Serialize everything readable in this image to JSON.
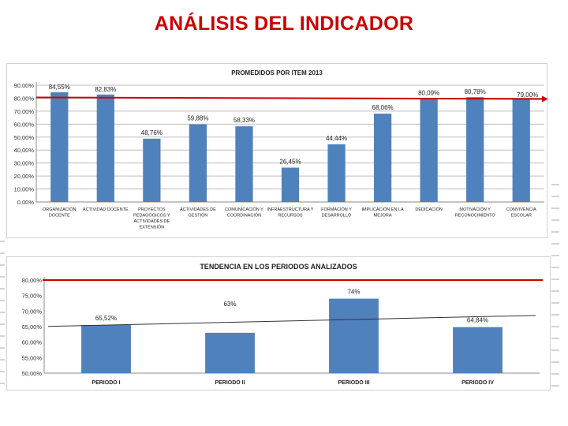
{
  "page": {
    "title": "ANÁLISIS DEL INDICADOR"
  },
  "colors": {
    "bar": "#4f81bd",
    "target_line": "#cc0000",
    "trend_line": "#333333",
    "grid": "#bdbdbd"
  },
  "chart_data": [
    {
      "type": "bar",
      "title": "PROMEDIDOS POR ITEM 2013",
      "categories": [
        [
          "ORGANIZACIÓN",
          "DOCENTE"
        ],
        [
          "ACTIVIDAD DOCENTE"
        ],
        [
          "PROYECTOS",
          "PEDAGÓGICOS Y",
          "ACTIVIDADES DE",
          "EXTENSIÓN"
        ],
        [
          "ACTIVIDADES DE",
          "GESTIÓN"
        ],
        [
          "COMUNICACIÓN Y",
          "COORDINACIÓN"
        ],
        [
          "INFRAESTRUCTURA Y",
          "RECURSOS"
        ],
        [
          "FORMACIÓN Y",
          "DESARROLLO"
        ],
        [
          "IMPLICACIÓN EN LA",
          "MEJORA"
        ],
        [
          "DEDICACIÓN"
        ],
        [
          "MOTIVACIÓN Y",
          "RECONOCIMIENTO"
        ],
        [
          "CONVIVENCIA",
          "ESCOLAR"
        ]
      ],
      "values": [
        84.55,
        82.83,
        48.76,
        59.88,
        58.33,
        26.45,
        44.44,
        68.06,
        80.09,
        80.78,
        79.0
      ],
      "data_labels": [
        "84,55%",
        "82,83%",
        "48,76%",
        "59,88%",
        "58,33%",
        "26,45%",
        "44,44%",
        "68,06%",
        "80,09%",
        "80,78%",
        "79,00%"
      ],
      "ylim": [
        0,
        90
      ],
      "yticks": [
        "0,00%",
        "10,00%",
        "20,00%",
        "30,00%",
        "40,00%",
        "50,00%",
        "60,00%",
        "70,00%",
        "80,00%",
        "90,00%"
      ],
      "reference_line": 80,
      "grid": true
    },
    {
      "type": "bar",
      "title": "TENDENCIA EN LOS PERIODOS ANALIZADOS",
      "categories": [
        "PERIODO I",
        "PERIODO II",
        "PERIODO III",
        "PERIODO IV"
      ],
      "values": [
        65.52,
        63,
        74,
        64.84
      ],
      "data_labels": [
        "65,52%",
        "63%",
        "74%",
        "64,84%"
      ],
      "ylim": [
        50,
        80
      ],
      "yticks": [
        "50,00%",
        "55,00%",
        "60,00%",
        "65,00%",
        "70,00%",
        "75,00%",
        "80,00%"
      ],
      "reference_line": 80,
      "trend_line": true,
      "grid": false
    }
  ]
}
